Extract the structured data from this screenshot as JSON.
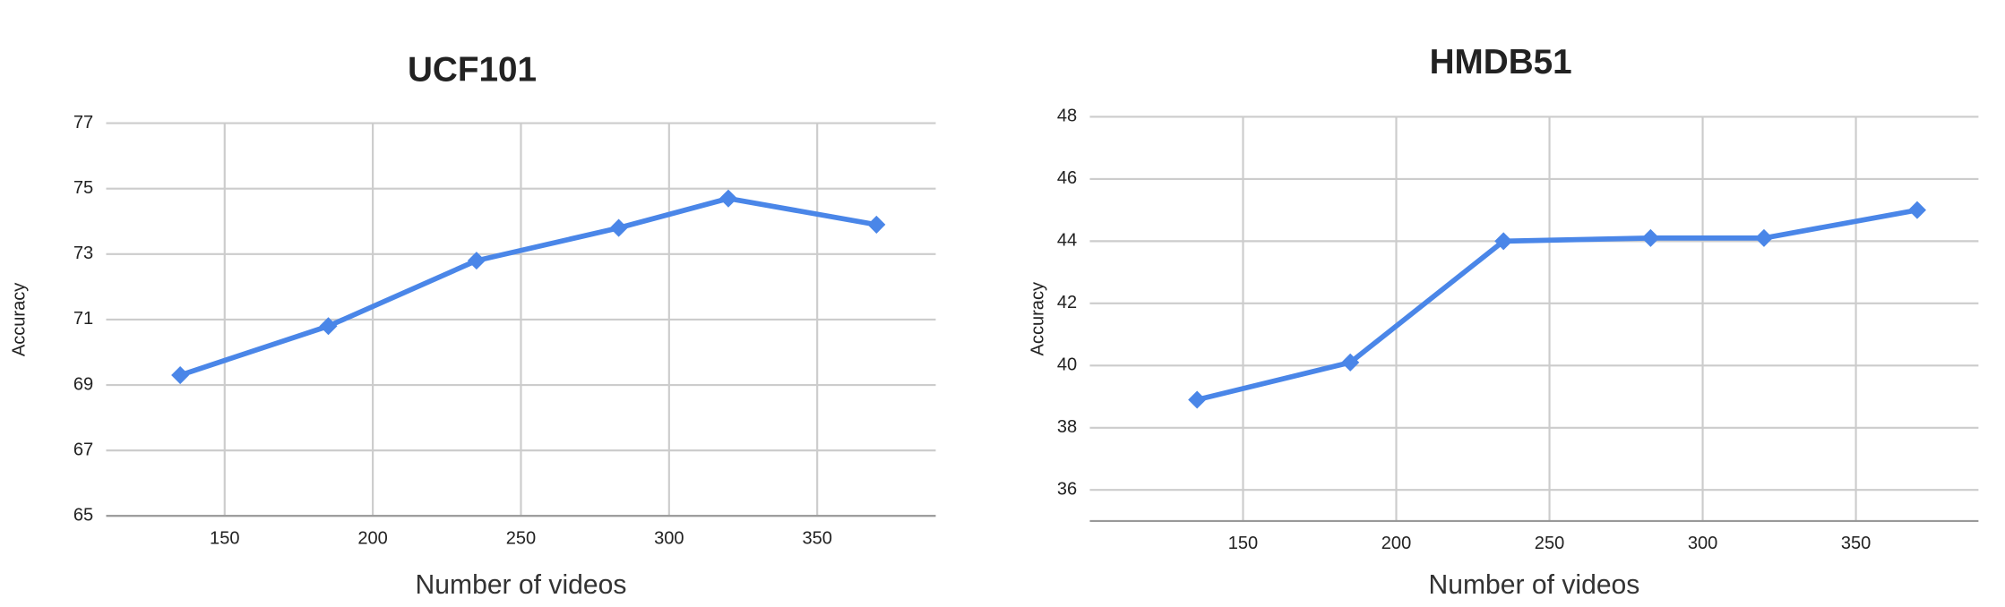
{
  "chart_data": [
    {
      "type": "line",
      "title": "UCF101",
      "x_label": "Number of videos",
      "y_label": "Accuracy",
      "x": [
        135,
        185,
        235,
        283,
        320,
        370
      ],
      "values": [
        69.3,
        70.8,
        72.8,
        73.8,
        74.7,
        73.9
      ],
      "color": "#4a86e8",
      "xlim": [
        110,
        390
      ],
      "xticks": [
        150,
        200,
        250,
        300,
        350
      ],
      "ylim": [
        65,
        77
      ],
      "yticks": [
        65,
        67,
        69,
        71,
        73,
        75,
        77
      ],
      "grid": true
    },
    {
      "type": "line",
      "title": "HMDB51",
      "x_label": "Number of videos",
      "y_label": "Accuracy",
      "x": [
        135,
        185,
        235,
        283,
        320,
        370
      ],
      "values": [
        38.9,
        40.1,
        44.0,
        44.1,
        44.1,
        45.0
      ],
      "color": "#4a86e8",
      "xlim": [
        100,
        390
      ],
      "xticks": [
        150,
        200,
        250,
        300,
        350
      ],
      "ylim": [
        35,
        48
      ],
      "yticks": [
        36,
        38,
        40,
        42,
        44,
        46,
        48
      ],
      "grid": true
    }
  ]
}
